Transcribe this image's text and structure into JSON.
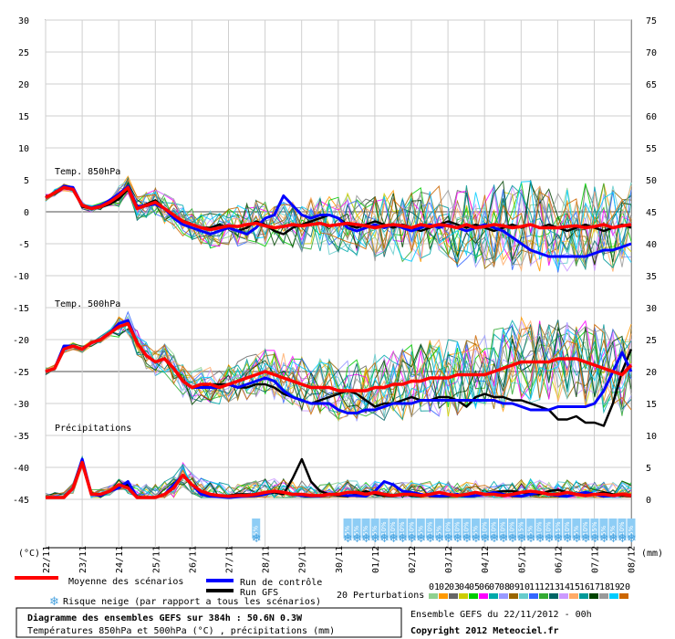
{
  "chart_data": {
    "type": "line",
    "left_axis": {
      "label": "(°C)",
      "ticks": [
        30,
        25,
        20,
        15,
        10,
        5,
        0,
        -5,
        -10,
        -15,
        -20,
        -25,
        -30,
        -35,
        -40,
        -45
      ]
    },
    "right_axis": {
      "label": "(mm)",
      "ticks": [
        75,
        70,
        65,
        60,
        55,
        50,
        45,
        40,
        35,
        30,
        25,
        20,
        15,
        10,
        5,
        0
      ]
    },
    "x_labels": [
      "22/11",
      "23/11",
      "24/11",
      "25/11",
      "26/11",
      "27/11",
      "28/11",
      "29/11",
      "30/11",
      "01/12",
      "02/12",
      "03/12",
      "04/12",
      "05/12",
      "06/12",
      "07/12",
      "08/12"
    ],
    "panels": [
      {
        "label": "Temp. 850hPa",
        "zero_line": 0,
        "mean": [
          2.2,
          3.0,
          3.8,
          3.5,
          1.0,
          0.5,
          0.8,
          1.5,
          2.5,
          3.8,
          0.5,
          1.0,
          1.5,
          0.5,
          -0.5,
          -1.5,
          -2.0,
          -2.5,
          -2.8,
          -2.5,
          -2.2,
          -2.3,
          -2.0,
          -1.8,
          -2.2,
          -2.5,
          -2.3,
          -2.0,
          -2.2,
          -2.0,
          -1.8,
          -2.2,
          -2.0,
          -1.8,
          -2.0,
          -2.2,
          -2.5,
          -2.2,
          -2.0,
          -2.2,
          -2.5,
          -2.0,
          -2.3,
          -2.0,
          -2.2,
          -2.5,
          -2.0,
          -2.5,
          -2.3,
          -2.0,
          -2.2,
          -2.5,
          -2.3,
          -2.0,
          -2.5,
          -2.5,
          -2.5,
          -2.3,
          -2.2,
          -2.5,
          -2.3,
          -2.0,
          -2.5,
          -2.2,
          -2.0
        ],
        "control": [
          2.2,
          3.0,
          4.0,
          3.8,
          1.0,
          0.6,
          1.0,
          1.8,
          2.8,
          4.0,
          0.8,
          1.0,
          1.2,
          0.5,
          -1.0,
          -2.0,
          -2.5,
          -3.0,
          -3.5,
          -3.0,
          -2.5,
          -3.0,
          -3.5,
          -2.5,
          -1.0,
          -0.5,
          2.5,
          1.0,
          -0.5,
          -1.0,
          -0.5,
          -0.5,
          -1.0,
          -2.5,
          -3.0,
          -2.5,
          -2.0,
          -2.5,
          -2.0,
          -2.5,
          -3.0,
          -2.5,
          -2.0,
          -2.5,
          -2.0,
          -2.5,
          -3.0,
          -2.5,
          -2.0,
          -2.5,
          -3.0,
          -4.0,
          -5.0,
          -6.0,
          -6.5,
          -7.0,
          -7.0,
          -7.0,
          -7.0,
          -7.0,
          -6.5,
          -6.0,
          -6.0,
          -5.5,
          -5.0
        ],
        "gfs": [
          2.2,
          3.0,
          3.8,
          3.6,
          0.8,
          0.5,
          0.7,
          1.2,
          2.0,
          3.5,
          0.6,
          1.2,
          1.8,
          0.5,
          -0.5,
          -1.5,
          -2.0,
          -2.5,
          -2.5,
          -2.0,
          -2.5,
          -3.0,
          -2.5,
          -1.5,
          -2.0,
          -3.0,
          -3.5,
          -2.5,
          -2.0,
          -1.5,
          -1.0,
          -0.5,
          -1.0,
          -2.0,
          -2.5,
          -2.0,
          -1.5,
          -2.0,
          -2.5,
          -2.0,
          -2.5,
          -3.0,
          -2.5,
          -2.0,
          -1.5,
          -2.0,
          -2.5,
          -2.0,
          -2.5,
          -3.0,
          -2.5,
          -2.0,
          -2.5,
          -2.0,
          -2.5,
          -2.0,
          -2.5,
          -3.0,
          -2.5,
          -2.0,
          -2.5,
          -3.0,
          -2.5,
          -2.0,
          -2.5
        ]
      },
      {
        "label": "Temp. 500hPa",
        "zero_line": -25,
        "mean": [
          -25.0,
          -24.5,
          -21.5,
          -21.0,
          -21.5,
          -20.5,
          -20.0,
          -19.0,
          -18.0,
          -17.5,
          -20.5,
          -22.5,
          -23.5,
          -23.0,
          -24.5,
          -26.5,
          -27.5,
          -27.0,
          -27.0,
          -27.5,
          -27.0,
          -26.5,
          -26.0,
          -25.5,
          -25.0,
          -25.5,
          -26.0,
          -26.5,
          -27.0,
          -27.5,
          -27.5,
          -27.5,
          -28.0,
          -28.0,
          -28.0,
          -28.0,
          -27.5,
          -27.5,
          -27.0,
          -27.0,
          -26.5,
          -26.5,
          -26.0,
          -26.0,
          -26.0,
          -25.5,
          -25.5,
          -25.5,
          -25.5,
          -25.0,
          -24.5,
          -24.0,
          -23.5,
          -23.5,
          -23.5,
          -23.5,
          -23.0,
          -23.0,
          -23.0,
          -23.5,
          -24.0,
          -24.5,
          -25.0,
          -25.5,
          -24.0
        ],
        "control": [
          -25.0,
          -24.5,
          -21.0,
          -21.0,
          -21.5,
          -20.5,
          -20.0,
          -19.0,
          -17.5,
          -17.0,
          -20.5,
          -22.5,
          -23.5,
          -23.0,
          -24.5,
          -26.5,
          -27.5,
          -27.5,
          -27.5,
          -27.5,
          -27.0,
          -27.5,
          -27.0,
          -26.5,
          -26.0,
          -26.5,
          -28.0,
          -29.0,
          -29.5,
          -30.0,
          -30.0,
          -30.0,
          -31.0,
          -31.5,
          -31.5,
          -31.0,
          -31.0,
          -30.5,
          -30.0,
          -30.0,
          -30.0,
          -29.5,
          -29.5,
          -29.5,
          -29.5,
          -29.5,
          -29.5,
          -29.5,
          -29.5,
          -29.5,
          -30.0,
          -30.0,
          -30.5,
          -31.0,
          -31.0,
          -31.0,
          -30.5,
          -30.5,
          -30.5,
          -30.5,
          -30.0,
          -28.0,
          -25.0,
          -22.0,
          -25.0
        ],
        "gfs": [
          -25.0,
          -24.5,
          -21.0,
          -21.0,
          -21.5,
          -20.5,
          -20.0,
          -19.0,
          -17.5,
          -17.0,
          -20.5,
          -22.5,
          -23.5,
          -23.0,
          -24.5,
          -26.5,
          -27.5,
          -27.5,
          -27.0,
          -27.0,
          -27.0,
          -27.5,
          -27.5,
          -27.0,
          -27.0,
          -27.5,
          -28.5,
          -29.0,
          -29.5,
          -30.0,
          -29.5,
          -29.0,
          -28.5,
          -28.0,
          -28.5,
          -29.5,
          -30.5,
          -30.0,
          -30.0,
          -29.5,
          -29.0,
          -29.5,
          -29.5,
          -29.0,
          -29.0,
          -29.5,
          -30.5,
          -29.0,
          -28.5,
          -29.0,
          -29.0,
          -29.5,
          -29.5,
          -30.0,
          -30.5,
          -31.0,
          -32.5,
          -32.5,
          -32.0,
          -33.0,
          -33.0,
          -33.5,
          -30.0,
          -25.0,
          -21.5
        ]
      },
      {
        "label": "Précipitations",
        "unit": "mm",
        "mean": [
          0.0,
          0.0,
          0.0,
          1.5,
          5.5,
          0.5,
          0.5,
          1.0,
          2.0,
          1.5,
          0.0,
          0.0,
          0.0,
          0.5,
          1.5,
          3.5,
          2.0,
          1.0,
          0.5,
          0.3,
          0.2,
          0.3,
          0.3,
          0.5,
          0.8,
          1.0,
          0.8,
          0.5,
          0.5,
          0.3,
          0.3,
          0.5,
          0.5,
          0.8,
          0.8,
          0.5,
          0.8,
          0.5,
          0.3,
          0.5,
          0.5,
          0.3,
          0.5,
          0.8,
          0.5,
          0.3,
          0.5,
          0.8,
          0.5,
          0.5,
          0.3,
          0.5,
          0.8,
          1.0,
          0.8,
          0.5,
          0.5,
          0.8,
          0.5,
          0.3,
          0.5,
          0.5,
          0.3,
          0.5,
          0.3
        ],
        "control": [
          0.0,
          0.0,
          0.0,
          1.5,
          6.0,
          0.5,
          0.3,
          1.0,
          1.5,
          2.5,
          0.0,
          0.0,
          0.0,
          0.5,
          2.0,
          3.5,
          2.0,
          0.5,
          0.2,
          0.1,
          0.0,
          0.1,
          0.2,
          0.3,
          0.5,
          1.0,
          0.8,
          0.5,
          0.3,
          0.2,
          0.2,
          0.5,
          0.5,
          0.3,
          0.3,
          0.2,
          1.0,
          2.5,
          2.0,
          1.0,
          0.8,
          0.5,
          0.3,
          0.2,
          0.3,
          0.5,
          0.2,
          0.3,
          0.5,
          0.8,
          0.5,
          0.3,
          0.2,
          0.5,
          0.8,
          0.5,
          0.3,
          0.2,
          0.5,
          0.8,
          0.5,
          0.2,
          0.3,
          0.5,
          0.3
        ],
        "gfs": [
          0.0,
          0.0,
          0.0,
          1.5,
          5.5,
          0.5,
          0.5,
          1.0,
          2.0,
          2.0,
          0.0,
          0.0,
          0.0,
          0.5,
          2.0,
          3.5,
          2.0,
          0.5,
          0.2,
          0.2,
          0.3,
          0.5,
          0.5,
          0.5,
          0.5,
          0.8,
          0.5,
          3.0,
          6.0,
          2.5,
          1.0,
          0.5,
          0.3,
          0.2,
          0.5,
          1.0,
          0.5,
          0.3,
          0.2,
          0.5,
          0.3,
          0.2,
          0.5,
          0.8,
          0.5,
          0.3,
          0.2,
          0.3,
          0.5,
          0.8,
          1.0,
          1.0,
          0.8,
          0.5,
          0.5,
          1.0,
          1.2,
          0.8,
          0.5,
          0.3,
          0.5,
          0.8,
          0.5,
          0.3,
          0.2
        ]
      }
    ],
    "snow_risk": {
      "label": "Risque neige (par rapport a tous les scénarios)",
      "points": [
        {
          "x": 23,
          "text": "5%"
        },
        {
          "x": 33,
          "text": "5%"
        },
        {
          "x": 34,
          "text": "5%"
        },
        {
          "x": 35,
          "text": "5%"
        },
        {
          "x": 36,
          "text": "5%"
        },
        {
          "x": 37,
          "text": "10%"
        },
        {
          "x": 38,
          "text": "10%"
        },
        {
          "x": 39,
          "text": "10%"
        },
        {
          "x": 40,
          "text": "10%"
        },
        {
          "x": 41,
          "text": "5%"
        },
        {
          "x": 42,
          "text": "10%"
        },
        {
          "x": 43,
          "text": "5%"
        },
        {
          "x": 44,
          "text": "10%"
        },
        {
          "x": 45,
          "text": "10%"
        },
        {
          "x": 46,
          "text": "10%"
        },
        {
          "x": 47,
          "text": "5%"
        },
        {
          "x": 48,
          "text": "10%"
        },
        {
          "x": 49,
          "text": "10%"
        },
        {
          "x": 50,
          "text": "10%"
        },
        {
          "x": 51,
          "text": "10%"
        },
        {
          "x": 52,
          "text": "15%"
        },
        {
          "x": 53,
          "text": "5%"
        },
        {
          "x": 54,
          "text": "10%"
        },
        {
          "x": 55,
          "text": "10%"
        },
        {
          "x": 56,
          "text": "15%"
        },
        {
          "x": 57,
          "text": "10%"
        },
        {
          "x": 58,
          "text": "5%"
        },
        {
          "x": 59,
          "text": "10%"
        },
        {
          "x": 60,
          "text": "15%"
        },
        {
          "x": 61,
          "text": "5%"
        },
        {
          "x": 62,
          "text": "5%"
        },
        {
          "x": 63,
          "text": "10%"
        },
        {
          "x": 64,
          "text": "5%"
        }
      ]
    },
    "legend": {
      "mean": "Moyenne des scénarios",
      "control": "Run de contrôle",
      "gfs": "Run GFS",
      "perturbations": "20 Perturbations",
      "perturbation_numbers": [
        "01",
        "02",
        "03",
        "04",
        "05",
        "06",
        "07",
        "08",
        "09",
        "10",
        "11",
        "12",
        "13",
        "14",
        "15",
        "16",
        "17",
        "18",
        "19",
        "20"
      ]
    },
    "colors": {
      "mean": "#ff0000",
      "control": "#0000ff",
      "gfs": "#000000",
      "snow": "#8ecdf5",
      "perturbations": [
        "#8fd18f",
        "#ff9900",
        "#666666",
        "#cccc00",
        "#00cc00",
        "#ff00ff",
        "#00aaaa",
        "#9999ff",
        "#996600",
        "#66cccc",
        "#3366ff",
        "#33aa33",
        "#006666",
        "#cc99ff",
        "#ffaa66",
        "#009999",
        "#004400",
        "#999999",
        "#00ccff",
        "#cc6600"
      ]
    }
  },
  "footer": {
    "title": "Diagramme des ensembles GEFS sur 384h : 50.6N 0.3W",
    "subtitle": "Températures 850hPa et 500hPa (°C) , précipitations (mm)",
    "run": "Ensemble GEFS du 22/11/2012 - 00h",
    "copyright": "Copyright 2012 Meteociel.fr"
  }
}
